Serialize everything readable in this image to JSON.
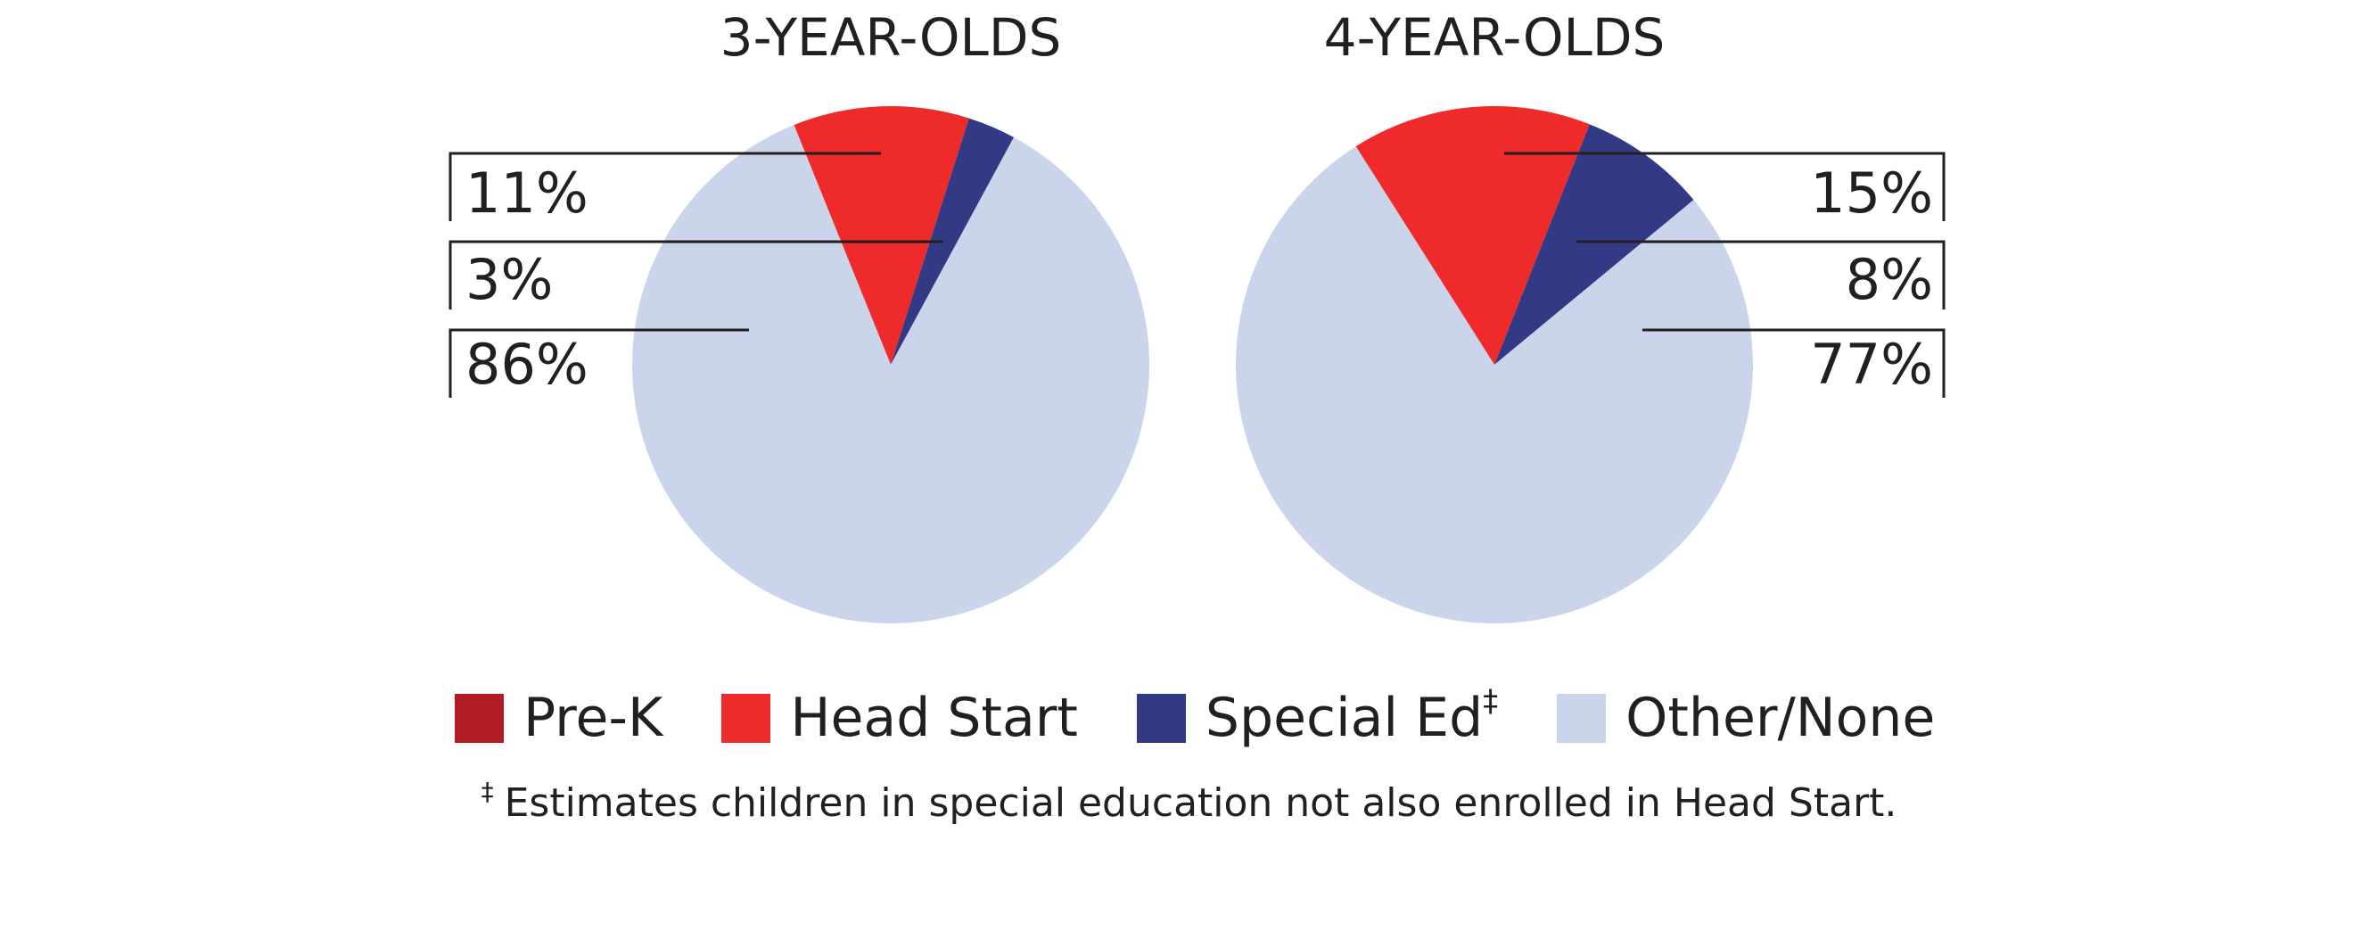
{
  "chart_data": [
    {
      "type": "pie",
      "title": "3-YEAR-OLDS",
      "slices": [
        {
          "label": "Pre-K",
          "value": 0,
          "display": ""
        },
        {
          "label": "Head Start",
          "value": 11,
          "display": "11%"
        },
        {
          "label": "Special Ed",
          "value": 3,
          "display": "3%"
        },
        {
          "label": "Other/None",
          "value": 86,
          "display": "86%"
        }
      ]
    },
    {
      "type": "pie",
      "title": "4-YEAR-OLDS",
      "slices": [
        {
          "label": "Pre-K",
          "value": 0,
          "display": ""
        },
        {
          "label": "Head Start",
          "value": 15,
          "display": "15%"
        },
        {
          "label": "Special Ed",
          "value": 8,
          "display": "8%"
        },
        {
          "label": "Other/None",
          "value": 77,
          "display": "77%"
        }
      ]
    }
  ],
  "legend": {
    "position": "bottom",
    "items": [
      {
        "label": "Pre-K",
        "mark": "",
        "color": "#b01c22"
      },
      {
        "label": "Head Start",
        "mark": "",
        "color": "#ee2a2a"
      },
      {
        "label": "Special Ed",
        "mark": "‡",
        "color": "#323a85"
      },
      {
        "label": "Other/None",
        "mark": "",
        "color": "#cad5eb"
      }
    ]
  },
  "footnote": {
    "mark": "‡",
    "text": "Estimates children in special education not also enrolled in Head Start."
  }
}
